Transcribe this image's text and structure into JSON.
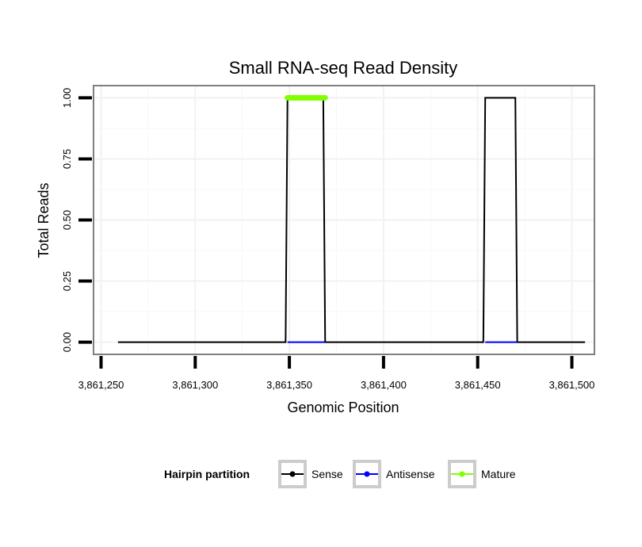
{
  "chart_data": {
    "type": "line",
    "title": "Small RNA-seq Read Density",
    "xlabel": "Genomic Position",
    "ylabel": "Total Reads",
    "xlim": [
      3861246,
      3861512
    ],
    "ylim": [
      -0.05,
      1.05
    ],
    "x_ticks": [
      {
        "value": 3861250,
        "label": "3,861,250"
      },
      {
        "value": 3861300,
        "label": "3,861,300"
      },
      {
        "value": 3861350,
        "label": "3,861,350"
      },
      {
        "value": 3861400,
        "label": "3,861,400"
      },
      {
        "value": 3861450,
        "label": "3,861,450"
      },
      {
        "value": 3861500,
        "label": "3,861,500"
      }
    ],
    "y_ticks": [
      {
        "value": 0,
        "label": "0.00"
      },
      {
        "value": 0.25,
        "label": "0.25"
      },
      {
        "value": 0.5,
        "label": "0.50"
      },
      {
        "value": 0.75,
        "label": "0.75"
      },
      {
        "value": 1,
        "label": "1.00"
      }
    ],
    "grid": true,
    "legend": {
      "title": "Hairpin partition",
      "position": "bottom",
      "entries": [
        "Sense",
        "Antisense",
        "Mature"
      ]
    },
    "series": [
      {
        "name": "Sense",
        "color": "#000000",
        "x": [
          3861259,
          3861348,
          3861349,
          3861368,
          3861369,
          3861453,
          3861454,
          3861470,
          3861471,
          3861507
        ],
        "y": [
          0,
          0,
          1,
          1,
          0,
          0,
          1,
          1,
          0,
          0
        ]
      },
      {
        "name": "Antisense",
        "color": "#0000ff",
        "x": [
          3861349,
          3861369,
          3861454,
          3861471
        ],
        "y": [
          0,
          0,
          0,
          0
        ],
        "segments": [
          [
            0,
            1
          ],
          [
            2,
            3
          ]
        ]
      },
      {
        "name": "Mature",
        "color": "#7fff00",
        "x": [
          3861349,
          3861369
        ],
        "y": [
          1,
          1
        ]
      }
    ]
  }
}
